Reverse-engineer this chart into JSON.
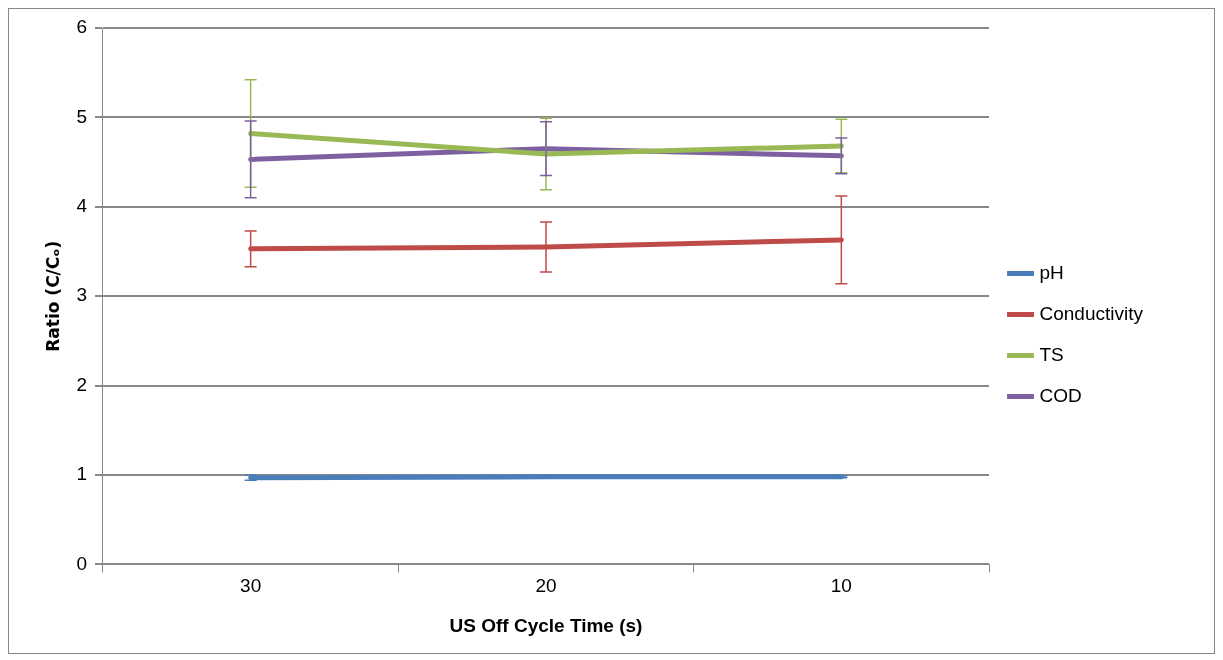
{
  "chart_data": {
    "type": "line",
    "xlabel": "US Off Cycle Time (s)",
    "ylabel": "Ratio (C/Cₒ)",
    "categories": [
      "30",
      "20",
      "10"
    ],
    "ylim": [
      0,
      6
    ],
    "yticks": [
      0,
      1,
      2,
      3,
      4,
      5,
      6
    ],
    "grid": "y",
    "legend": "right",
    "marker": "none",
    "line_style": "solid",
    "series": [
      {
        "name": "pH",
        "color": "#4a7ebb",
        "values": [
          0.97,
          0.98,
          0.98
        ],
        "errors": [
          0.03,
          0.01,
          0.01
        ]
      },
      {
        "name": "Conductivity",
        "color": "#be4b48",
        "values": [
          3.53,
          3.55,
          3.63
        ],
        "errors": [
          0.2,
          0.28,
          0.49
        ]
      },
      {
        "name": "TS",
        "color": "#98b954",
        "values": [
          4.82,
          4.59,
          4.68
        ],
        "errors": [
          0.6,
          0.4,
          0.3
        ]
      },
      {
        "name": "COD",
        "color": "#7d60a0",
        "values": [
          4.53,
          4.65,
          4.57
        ],
        "errors": [
          0.43,
          0.3,
          0.2
        ]
      }
    ]
  }
}
